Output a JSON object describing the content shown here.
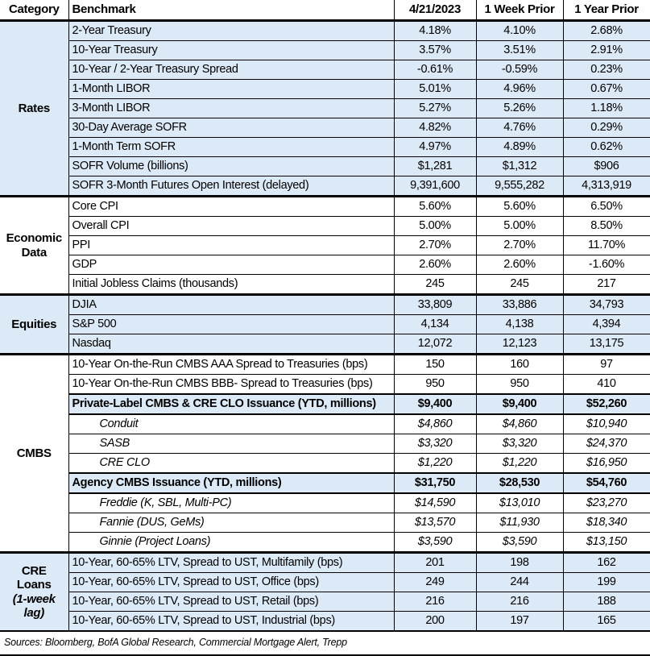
{
  "colors": {
    "row_shade_blue": "#DCE9F6",
    "border_black": "#000000",
    "background_white": "#FFFFFF"
  },
  "header": {
    "columns": [
      "Category",
      "Benchmark",
      "4/21/2023",
      "1 Week Prior",
      "1 Year Prior"
    ]
  },
  "sections": [
    {
      "category": "Rates",
      "shaded": true,
      "rows": [
        {
          "style": "normal",
          "benchmark": "2-Year Treasury",
          "values": [
            "4.18%",
            "4.10%",
            "2.68%"
          ]
        },
        {
          "style": "normal",
          "benchmark": "10-Year Treasury",
          "values": [
            "3.57%",
            "3.51%",
            "2.91%"
          ]
        },
        {
          "style": "normal",
          "benchmark": "10-Year / 2-Year Treasury Spread",
          "values": [
            "-0.61%",
            "-0.59%",
            "0.23%"
          ]
        },
        {
          "style": "normal",
          "benchmark": "1-Month LIBOR",
          "values": [
            "5.01%",
            "4.96%",
            "0.67%"
          ]
        },
        {
          "style": "normal",
          "benchmark": "3-Month LIBOR",
          "values": [
            "5.27%",
            "5.26%",
            "1.18%"
          ]
        },
        {
          "style": "normal",
          "benchmark": "30-Day Average SOFR",
          "values": [
            "4.82%",
            "4.76%",
            "0.29%"
          ]
        },
        {
          "style": "normal",
          "benchmark": "1-Month Term SOFR",
          "values": [
            "4.97%",
            "4.89%",
            "0.62%"
          ]
        },
        {
          "style": "normal",
          "benchmark": "SOFR Volume (billions)",
          "values": [
            "$1,281",
            "$1,312",
            "$906"
          ]
        },
        {
          "style": "normal",
          "benchmark": "SOFR 3-Month Futures Open Interest (delayed)",
          "values": [
            "9,391,600",
            "9,555,282",
            "4,313,919"
          ]
        }
      ]
    },
    {
      "category": "Economic Data",
      "shaded": false,
      "rows": [
        {
          "style": "normal",
          "benchmark": "Core CPI",
          "values": [
            "5.60%",
            "5.60%",
            "6.50%"
          ]
        },
        {
          "style": "normal",
          "benchmark": "Overall CPI",
          "values": [
            "5.00%",
            "5.00%",
            "8.50%"
          ]
        },
        {
          "style": "normal",
          "benchmark": "PPI",
          "values": [
            "2.70%",
            "2.70%",
            "11.70%"
          ]
        },
        {
          "style": "normal",
          "benchmark": "GDP",
          "values": [
            "2.60%",
            "2.60%",
            "-1.60%"
          ]
        },
        {
          "style": "normal",
          "benchmark": "Initial Jobless Claims (thousands)",
          "values": [
            "245",
            "245",
            "217"
          ]
        }
      ]
    },
    {
      "category": "Equities",
      "shaded": true,
      "rows": [
        {
          "style": "normal",
          "benchmark": "DJIA",
          "values": [
            "33,809",
            "33,886",
            "34,793"
          ]
        },
        {
          "style": "normal",
          "benchmark": "S&P 500",
          "values": [
            "4,134",
            "4,138",
            "4,394"
          ]
        },
        {
          "style": "normal",
          "benchmark": "Nasdaq",
          "values": [
            "12,072",
            "12,123",
            "13,175"
          ]
        }
      ]
    },
    {
      "category": "CMBS",
      "shaded": false,
      "rows": [
        {
          "style": "normal",
          "benchmark": "10-Year On-the-Run CMBS AAA Spread to Treasuries (bps)",
          "values": [
            "150",
            "160",
            "97"
          ]
        },
        {
          "style": "normal",
          "benchmark": "10-Year On-the-Run CMBS BBB- Spread to Treasuries (bps)",
          "values": [
            "950",
            "950",
            "410"
          ]
        },
        {
          "style": "highlight",
          "benchmark": "Private-Label CMBS & CRE CLO Issuance (YTD, millions)",
          "values": [
            "$9,400",
            "$9,400",
            "$52,260"
          ]
        },
        {
          "style": "sub",
          "benchmark": "Conduit",
          "values": [
            "$4,860",
            "$4,860",
            "$10,940"
          ]
        },
        {
          "style": "sub",
          "benchmark": "SASB",
          "values": [
            "$3,320",
            "$3,320",
            "$24,370"
          ]
        },
        {
          "style": "sub",
          "benchmark": "CRE CLO",
          "values": [
            "$1,220",
            "$1,220",
            "$16,950"
          ]
        },
        {
          "style": "highlight",
          "benchmark": "Agency CMBS Issuance (YTD, millions)",
          "values": [
            "$31,750",
            "$28,530",
            "$54,760"
          ]
        },
        {
          "style": "sub",
          "benchmark": "Freddie (K, SBL, Multi-PC)",
          "values": [
            "$14,590",
            "$13,010",
            "$23,270"
          ]
        },
        {
          "style": "sub",
          "benchmark": "Fannie (DUS, GeMs)",
          "values": [
            "$13,570",
            "$11,930",
            "$18,340"
          ]
        },
        {
          "style": "sub",
          "benchmark": "Ginnie (Project Loans)",
          "values": [
            "$3,590",
            "$3,590",
            "$13,150"
          ]
        }
      ]
    },
    {
      "category": "CRE Loans",
      "category_sub": "(1-week lag)",
      "shaded": true,
      "rows": [
        {
          "style": "normal",
          "benchmark": "10-Year, 60-65% LTV, Spread to UST, Multifamily (bps)",
          "values": [
            "201",
            "198",
            "162"
          ]
        },
        {
          "style": "normal",
          "benchmark": "10-Year, 60-65% LTV, Spread to UST, Office (bps)",
          "values": [
            "249",
            "244",
            "199"
          ]
        },
        {
          "style": "normal",
          "benchmark": "10-Year, 60-65% LTV, Spread to UST, Retail (bps)",
          "values": [
            "216",
            "216",
            "188"
          ]
        },
        {
          "style": "normal",
          "benchmark": "10-Year, 60-65% LTV, Spread to UST, Industrial (bps)",
          "values": [
            "200",
            "197",
            "165"
          ]
        }
      ]
    }
  ],
  "footer": {
    "sources": "Sources: Bloomberg, BofA Global Research, Commercial Mortgage Alert, Trepp"
  },
  "chart_data": {
    "type": "table",
    "title": "Benchmark rates and spreads table as of 4/21/2023",
    "columns": [
      "Category",
      "Benchmark",
      "4/21/2023",
      "1 Week Prior",
      "1 Year Prior"
    ],
    "rows": [
      [
        "Rates",
        "2-Year Treasury",
        "4.18%",
        "4.10%",
        "2.68%"
      ],
      [
        "Rates",
        "10-Year Treasury",
        "3.57%",
        "3.51%",
        "2.91%"
      ],
      [
        "Rates",
        "10-Year / 2-Year Treasury Spread",
        "-0.61%",
        "-0.59%",
        "0.23%"
      ],
      [
        "Rates",
        "1-Month LIBOR",
        "5.01%",
        "4.96%",
        "0.67%"
      ],
      [
        "Rates",
        "3-Month LIBOR",
        "5.27%",
        "5.26%",
        "1.18%"
      ],
      [
        "Rates",
        "30-Day Average SOFR",
        "4.82%",
        "4.76%",
        "0.29%"
      ],
      [
        "Rates",
        "1-Month Term SOFR",
        "4.97%",
        "4.89%",
        "0.62%"
      ],
      [
        "Rates",
        "SOFR Volume (billions)",
        "$1,281",
        "$1,312",
        "$906"
      ],
      [
        "Rates",
        "SOFR 3-Month Futures Open Interest (delayed)",
        "9,391,600",
        "9,555,282",
        "4,313,919"
      ],
      [
        "Economic Data",
        "Core CPI",
        "5.60%",
        "5.60%",
        "6.50%"
      ],
      [
        "Economic Data",
        "Overall CPI",
        "5.00%",
        "5.00%",
        "8.50%"
      ],
      [
        "Economic Data",
        "PPI",
        "2.70%",
        "2.70%",
        "11.70%"
      ],
      [
        "Economic Data",
        "GDP",
        "2.60%",
        "2.60%",
        "-1.60%"
      ],
      [
        "Economic Data",
        "Initial Jobless Claims (thousands)",
        "245",
        "245",
        "217"
      ],
      [
        "Equities",
        "DJIA",
        "33,809",
        "33,886",
        "34,793"
      ],
      [
        "Equities",
        "S&P 500",
        "4,134",
        "4,138",
        "4,394"
      ],
      [
        "Equities",
        "Nasdaq",
        "12,072",
        "12,123",
        "13,175"
      ],
      [
        "CMBS",
        "10-Year On-the-Run CMBS AAA Spread to Treasuries (bps)",
        "150",
        "160",
        "97"
      ],
      [
        "CMBS",
        "10-Year On-the-Run CMBS BBB- Spread to Treasuries (bps)",
        "950",
        "950",
        "410"
      ],
      [
        "CMBS",
        "Private-Label CMBS & CRE CLO Issuance (YTD, millions)",
        "$9,400",
        "$9,400",
        "$52,260"
      ],
      [
        "CMBS",
        "Conduit",
        "$4,860",
        "$4,860",
        "$10,940"
      ],
      [
        "CMBS",
        "SASB",
        "$3,320",
        "$3,320",
        "$24,370"
      ],
      [
        "CMBS",
        "CRE CLO",
        "$1,220",
        "$1,220",
        "$16,950"
      ],
      [
        "CMBS",
        "Agency CMBS Issuance (YTD, millions)",
        "$31,750",
        "$28,530",
        "$54,760"
      ],
      [
        "CMBS",
        "Freddie (K, SBL, Multi-PC)",
        "$14,590",
        "$13,010",
        "$23,270"
      ],
      [
        "CMBS",
        "Fannie (DUS, GeMs)",
        "$13,570",
        "$11,930",
        "$18,340"
      ],
      [
        "CMBS",
        "Ginnie (Project Loans)",
        "$3,590",
        "$3,590",
        "$13,150"
      ],
      [
        "CRE Loans (1-week lag)",
        "10-Year, 60-65% LTV, Spread to UST, Multifamily (bps)",
        "201",
        "198",
        "162"
      ],
      [
        "CRE Loans (1-week lag)",
        "10-Year, 60-65% LTV, Spread to UST, Office (bps)",
        "249",
        "244",
        "199"
      ],
      [
        "CRE Loans (1-week lag)",
        "10-Year, 60-65% LTV, Spread to UST, Retail (bps)",
        "216",
        "216",
        "188"
      ],
      [
        "CRE Loans (1-week lag)",
        "10-Year, 60-65% LTV, Spread to UST, Industrial (bps)",
        "200",
        "197",
        "165"
      ]
    ]
  }
}
